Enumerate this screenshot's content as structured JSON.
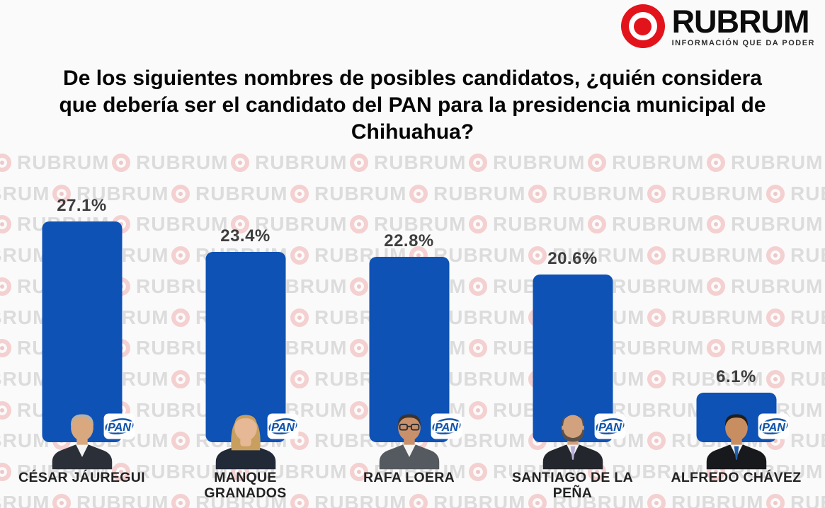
{
  "brand": {
    "name": "RUBRUM",
    "tagline": "INFORMACIÓN QUE DA PODER",
    "logo_red": "#e3131b"
  },
  "title": "De los siguientes nombres de posibles candidatos, ¿quién considera que debería ser el candidato del PAN para la presidencia municipal de Chihuahua?",
  "watermark_text": "RUBRUM",
  "chart_data": {
    "type": "bar",
    "title": "De los siguientes nombres de posibles candidatos, ¿quién considera que debería ser el candidato del PAN para la presidencia municipal de Chihuahua?",
    "categories": [
      "CÉSAR JÁUREGUI",
      "MANQUE GRANADOS",
      "RAFA LOERA",
      "SANTIAGO DE LA PEÑA",
      "ALFREDO CHÁVEZ"
    ],
    "values": [
      27.1,
      23.4,
      22.8,
      20.6,
      6.1
    ],
    "value_labels": [
      "27.1%",
      "23.4%",
      "22.8%",
      "20.6%",
      "6.1%"
    ],
    "display_names": [
      "CÉSAR JÁUREGUI",
      "MANQUE\nGRANADOS",
      "RAFA LOERA",
      "SANTIAGO DE LA\nPEÑA",
      "ALFREDO CHÁVEZ"
    ],
    "badge": "PAN",
    "bar_color": "#0d52b4",
    "pan_blue": "#1456aa",
    "xlabel": "",
    "ylabel": "",
    "ylim": [
      0,
      30
    ],
    "grid": false,
    "legend": false,
    "value_label_position": "above-bar"
  },
  "avatars": [
    {
      "style": "short",
      "hair": "#b7b0a6",
      "skin": "#d9a87f",
      "suit": "#2b2f38",
      "shirt": true,
      "tie": null,
      "glasses": false,
      "beard": false
    },
    {
      "style": "long",
      "hair": "#c99f5f",
      "skin": "#e6b896",
      "suit": "#222a38",
      "shirt": false,
      "tie": null,
      "glasses": false,
      "beard": false
    },
    {
      "style": "short",
      "hair": "#3a332e",
      "skin": "#c9916b",
      "suit": "#555a60",
      "shirt": true,
      "tie": null,
      "glasses": true,
      "beard": false
    },
    {
      "style": "bald",
      "hair": "#5a5048",
      "skin": "#d2a27e",
      "suit": "#23262c",
      "shirt": true,
      "tie": "#b6aed8",
      "glasses": false,
      "beard": true
    },
    {
      "style": "short",
      "hair": "#231d19",
      "skin": "#c88e61",
      "suit": "#17191d",
      "shirt": true,
      "tie": "#1f5fae",
      "glasses": false,
      "beard": false
    }
  ]
}
